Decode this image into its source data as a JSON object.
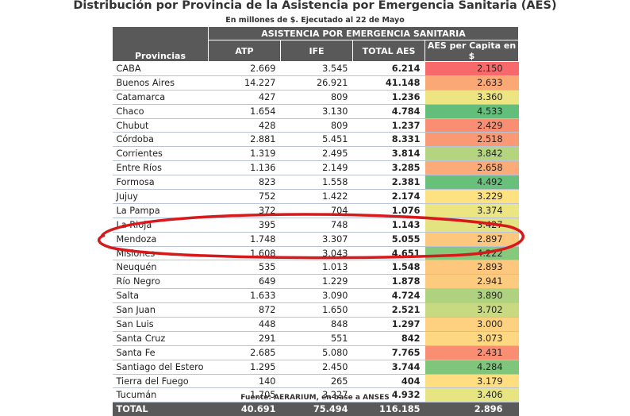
{
  "title": "Distribución por Provincia de la Asistencia por Emergencia Sanitaria (AES)",
  "subtitle": "En millones de $. Ejecutado al 22 de Mayo",
  "group_header": "ASISTENCIA POR EMERGENCIA SANITARIA",
  "columns": {
    "provincias": "Provincias",
    "atp": "ATP",
    "ife": "IFE",
    "total_aes": "TOTAL AES",
    "per_capita": "AES per Capita en $"
  },
  "rows": [
    {
      "name": "CABA",
      "atp": "2.669",
      "ife": "3.545",
      "total": "6.214",
      "pc": "2.150",
      "color": "#f8696b"
    },
    {
      "name": "Buenos Aires",
      "atp": "14.227",
      "ife": "26.921",
      "total": "41.148",
      "pc": "2.633",
      "color": "#fba877"
    },
    {
      "name": "Catamarca",
      "atp": "427",
      "ife": "809",
      "total": "1.236",
      "pc": "3.360",
      "color": "#ede582"
    },
    {
      "name": "Chaco",
      "atp": "1.654",
      "ife": "3.130",
      "total": "4.784",
      "pc": "4.533",
      "color": "#63be7b"
    },
    {
      "name": "Chubut",
      "atp": "428",
      "ife": "809",
      "total": "1.237",
      "pc": "2.429",
      "color": "#f98e72"
    },
    {
      "name": "Córdoba",
      "atp": "2.881",
      "ife": "5.451",
      "total": "8.331",
      "pc": "2.518",
      "color": "#fa9a74"
    },
    {
      "name": "Corrientes",
      "atp": "1.319",
      "ife": "2.495",
      "total": "3.814",
      "pc": "3.842",
      "color": "#b4d47f"
    },
    {
      "name": "Entre Ríos",
      "atp": "1.136",
      "ife": "2.149",
      "total": "3.285",
      "pc": "2.658",
      "color": "#fbab77"
    },
    {
      "name": "Formosa",
      "atp": "823",
      "ife": "1.558",
      "total": "2.381",
      "pc": "4.492",
      "color": "#68c07b"
    },
    {
      "name": "Jujuy",
      "atp": "752",
      "ife": "1.422",
      "total": "2.174",
      "pc": "3.229",
      "color": "#fee282"
    },
    {
      "name": "La Pampa",
      "atp": "372",
      "ife": "704",
      "total": "1.076",
      "pc": "3.374",
      "color": "#ebe582"
    },
    {
      "name": "La Rioja",
      "atp": "395",
      "ife": "748",
      "total": "1.143",
      "pc": "3.427",
      "color": "#e4e382"
    },
    {
      "name": "Mendoza",
      "atp": "1.748",
      "ife": "3.307",
      "total": "5.055",
      "pc": "2.897",
      "color": "#fdc77d"
    },
    {
      "name": "Misiones",
      "atp": "1.608",
      "ife": "3.043",
      "total": "4.651",
      "pc": "4.222",
      "color": "#86c97d"
    },
    {
      "name": "Neuquén",
      "atp": "535",
      "ife": "1.013",
      "total": "1.548",
      "pc": "2.893",
      "color": "#fdc77d"
    },
    {
      "name": "Río Negro",
      "atp": "649",
      "ife": "1.229",
      "total": "1.878",
      "pc": "2.941",
      "color": "#fdcb7e"
    },
    {
      "name": "Salta",
      "atp": "1.633",
      "ife": "3.090",
      "total": "4.724",
      "pc": "3.890",
      "color": "#aed27f"
    },
    {
      "name": "San Juan",
      "atp": "872",
      "ife": "1.650",
      "total": "2.521",
      "pc": "3.702",
      "color": "#c7da81"
    },
    {
      "name": "San Luis",
      "atp": "448",
      "ife": "848",
      "total": "1.297",
      "pc": "3.000",
      "color": "#fdd17f"
    },
    {
      "name": "Santa Cruz",
      "atp": "291",
      "ife": "551",
      "total": "842",
      "pc": "3.073",
      "color": "#fed880"
    },
    {
      "name": "Santa Fe",
      "atp": "2.685",
      "ife": "5.080",
      "total": "7.765",
      "pc": "2.431",
      "color": "#f98e72"
    },
    {
      "name": "Santiago del Estero",
      "atp": "1.295",
      "ife": "2.450",
      "total": "3.744",
      "pc": "4.284",
      "color": "#7fc67c"
    },
    {
      "name": "Tierra del Fuego",
      "atp": "140",
      "ife": "265",
      "total": "404",
      "pc": "3.179",
      "color": "#fede81"
    },
    {
      "name": "Tucumán",
      "atp": "1.705",
      "ife": "3.227",
      "total": "4.932",
      "pc": "3.406",
      "color": "#e7e482"
    }
  ],
  "total_row": {
    "name": "TOTAL",
    "atp": "40.691",
    "ife": "75.494",
    "total": "116.185",
    "pc": "2.896"
  },
  "source": "Fuente: AERARIUM, en base a ANSES",
  "annotation_color": "#d7191c"
}
